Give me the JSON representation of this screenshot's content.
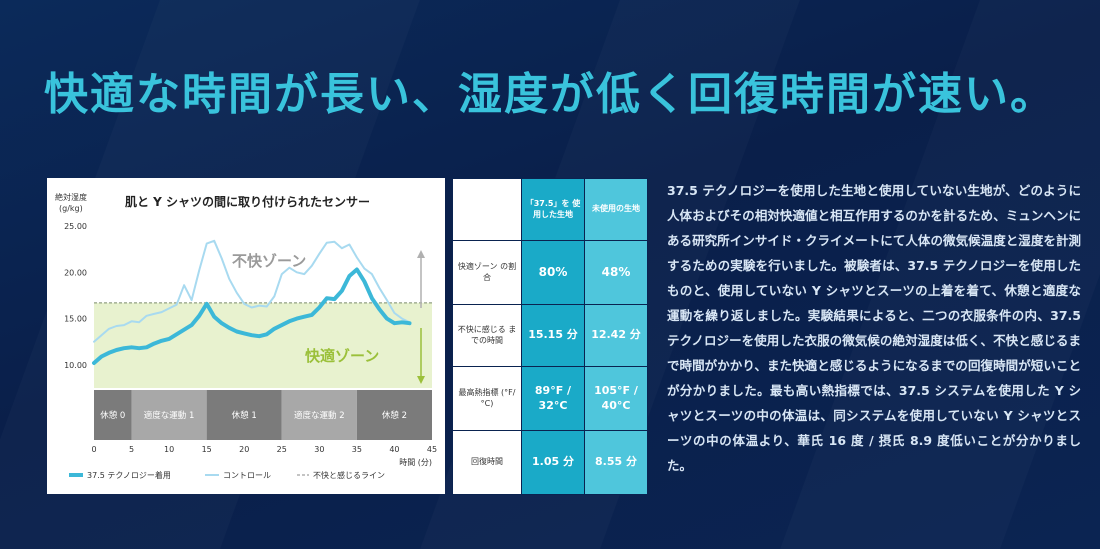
{
  "headline": "快適な時間が長い、湿度が低く回復時間が速い。",
  "chart": {
    "title": "肌と Y シャツの間に取り付けられたセンサー",
    "ylabel_line1": "絶対湿度",
    "ylabel_line2": "(g/kg)",
    "xlabel": "時間 (分)",
    "y_ticks": [
      "25.00",
      "20.00",
      "15.00",
      "10.00"
    ],
    "x_ticks": [
      "0",
      "5",
      "10",
      "15",
      "20",
      "25",
      "30",
      "35",
      "40",
      "45"
    ],
    "discomfort_zone_label": "不快ゾーン",
    "comfort_zone_label": "快適ゾーン",
    "phases": [
      "休憩 0",
      "適度な運動 1",
      "休憩 1",
      "適度な運動 2",
      "休憩 2"
    ],
    "legend": {
      "series_a": "37.5 テクノロジー着用",
      "series_b": "コントロール",
      "threshold": "不快と感じるライン"
    },
    "colors": {
      "series_a": "#3cb8d8",
      "series_b": "#a8daf0",
      "comfort_zone": "#e8f2cf",
      "phase_dark": "#7b7b7b",
      "phase_light": "#a8a8a8",
      "threshold": "#7a8a6a",
      "comfort_text": "#9bc03a"
    }
  },
  "chart_data": {
    "type": "line",
    "title": "肌と Y シャツの間に取り付けられたセンサー",
    "xlabel": "時間 (分)",
    "ylabel": "絶対湿度 (g/kg)",
    "xlim": [
      0,
      45
    ],
    "ylim": [
      7.5,
      25
    ],
    "threshold": 16.7,
    "series": [
      {
        "name": "37.5 テクノロジー着用",
        "x": [
          0,
          1,
          2,
          3,
          4,
          5,
          6,
          7,
          8,
          9,
          10,
          11,
          12,
          13,
          14,
          15,
          16,
          17,
          18,
          19,
          20,
          21,
          22,
          23,
          24,
          25,
          26,
          27,
          28,
          29,
          30,
          31,
          32,
          33,
          34,
          35,
          36,
          37,
          38,
          39,
          40,
          41,
          42
        ],
        "y": [
          10.2,
          10.9,
          11.3,
          11.6,
          11.8,
          11.9,
          11.8,
          11.9,
          12.3,
          12.6,
          12.8,
          13.3,
          13.8,
          14.3,
          15.3,
          16.6,
          15.2,
          14.5,
          14.0,
          13.6,
          13.4,
          13.2,
          13.1,
          13.3,
          13.9,
          14.3,
          14.7,
          15.0,
          15.2,
          15.4,
          16.2,
          17.2,
          17.1,
          18.0,
          19.6,
          20.3,
          19.0,
          17.2,
          16.0,
          15.0,
          14.5,
          14.6,
          14.5
        ]
      },
      {
        "name": "コントロール",
        "x": [
          0,
          1,
          2,
          3,
          4,
          5,
          6,
          7,
          8,
          9,
          10,
          11,
          12,
          13,
          14,
          15,
          16,
          17,
          18,
          19,
          20,
          21,
          22,
          23,
          24,
          25,
          26,
          27,
          28,
          29,
          30,
          31,
          32,
          33,
          34,
          35,
          36,
          37,
          38,
          39,
          40,
          41,
          42
        ],
        "y": [
          12.5,
          13.2,
          13.9,
          14.2,
          14.3,
          14.7,
          14.6,
          15.3,
          15.5,
          15.7,
          16.1,
          16.5,
          18.6,
          17.0,
          20.2,
          23.1,
          23.4,
          21.5,
          19.3,
          17.8,
          16.6,
          16.2,
          16.4,
          16.3,
          17.4,
          19.8,
          20.5,
          20.0,
          19.8,
          20.7,
          22.0,
          23.2,
          23.3,
          22.6,
          23.0,
          21.6,
          20.4,
          19.8,
          18.3,
          17.0,
          15.6,
          15.0,
          14.6
        ]
      }
    ]
  },
  "table": {
    "headers": [
      "「37.5」を 使用した生地",
      "未使用の生地"
    ],
    "rows": [
      {
        "label": "快適ゾーン の割合",
        "a": "80%",
        "b": "48%"
      },
      {
        "label": "不快に感じる までの時間",
        "a": "15.15 分",
        "b": "12.42 分"
      },
      {
        "label": "最高熱指標 (°F/°C)",
        "a": "89°F / 32°C",
        "b": "105°F / 40°C"
      },
      {
        "label": "回復時間",
        "a": "1.05 分",
        "b": "8.55 分"
      }
    ]
  },
  "body_text": "37.5 テクノロジーを使用した生地と使用していない生地が、どのように人体およびその相対快適値と相互作用するのかを計るため、ミュンヘンにある研究所インサイド・クライメートにて人体の微気候温度と湿度を計測するための実験を行いました。被験者は、37.5 テクノロジーを使用したものと、使用していない Y シャツとスーツの上着を着て、休憩と適度な運動を繰り返しました。実験結果によると、二つの衣服条件の内、37.5 テクノロジーを使用した衣服の微気候の絶対湿度は低く、不快と感じるまで時間がかかり、また快適と感じるようになるまでの回復時間が短いことが分かりました。最も高い熱指標では、37.5 システムを使用した Y シャツとスーツの中の体温は、同システムを使用していない Y シャツとスーツの中の体温より、華氏 16 度 / 摂氏 8.9 度低いことが分かりました。"
}
